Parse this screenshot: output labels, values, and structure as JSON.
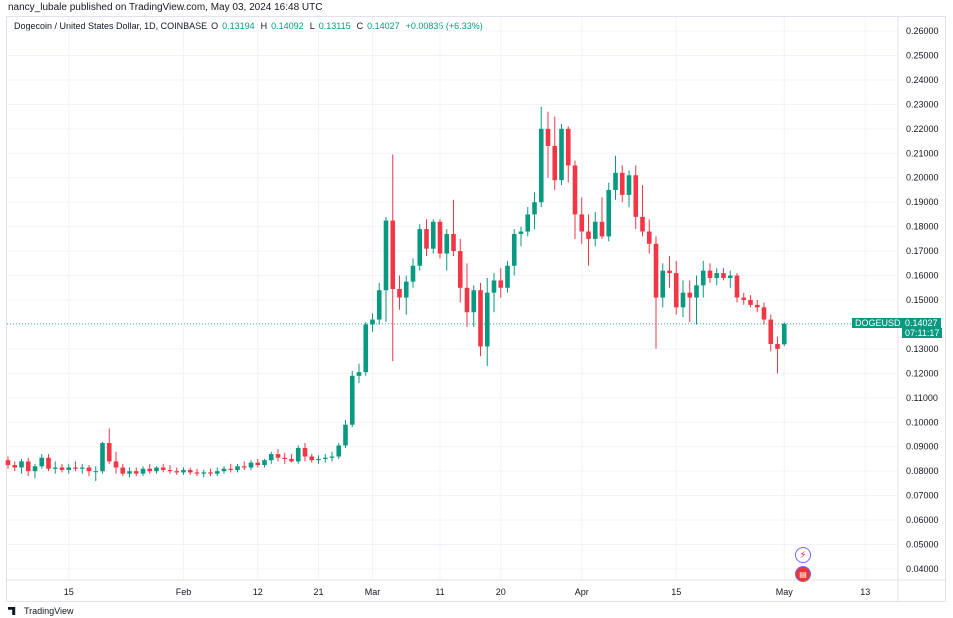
{
  "header": {
    "publisher": "nancy_lubale published on TradingView.com, May 03, 2024 16:48 UTC"
  },
  "legend": {
    "symbol": "Dogecoin / United States Dollar, 1D, COINBASE",
    "o_label": "O",
    "o_value": "0.13194",
    "h_label": "H",
    "h_value": "0.14092",
    "l_label": "L",
    "l_value": "0.13115",
    "c_label": "C",
    "c_value": "0.14027",
    "change": "+0.00835 (+6.33%)"
  },
  "price_label": {
    "symbol": "DOGEUSD",
    "value": "0.14027",
    "countdown": "07:11:17"
  },
  "footer": {
    "brand": "TradingView"
  },
  "icons": {
    "flash": "lightning-icon",
    "flag": "us-flag-icon"
  },
  "colors": {
    "up": "#089981",
    "down": "#f23645",
    "grid": "#f0f3fa",
    "axis_text": "#131722"
  },
  "chart_data": {
    "type": "candlestick",
    "title": "Dogecoin / United States Dollar, 1D, COINBASE",
    "xlabel": "",
    "ylabel": "",
    "ylim": [
      0.035,
      0.265
    ],
    "y_ticks": [
      "0.26000",
      "0.25000",
      "0.24000",
      "0.23000",
      "0.22000",
      "0.21000",
      "0.20000",
      "0.19000",
      "0.18000",
      "0.17000",
      "0.16000",
      "0.15000",
      "0.14000",
      "0.13000",
      "0.12000",
      "0.11000",
      "0.10000",
      "0.09000",
      "0.08000",
      "0.07000",
      "0.06000",
      "0.05000",
      "0.04000"
    ],
    "x_ticks": [
      {
        "label": "15",
        "index": 9
      },
      {
        "label": "Feb",
        "index": 26
      },
      {
        "label": "12",
        "index": 37
      },
      {
        "label": "21",
        "index": 46
      },
      {
        "label": "Mar",
        "index": 54
      },
      {
        "label": "11",
        "index": 64
      },
      {
        "label": "20",
        "index": 73
      },
      {
        "label": "Apr",
        "index": 85
      },
      {
        "label": "15",
        "index": 99
      },
      {
        "label": "May",
        "index": 115
      },
      {
        "label": "13",
        "index": 127
      }
    ],
    "candles": [
      [
        0.0845,
        0.086,
        0.081,
        0.0825
      ],
      [
        0.0825,
        0.084,
        0.08,
        0.0815
      ],
      [
        0.0815,
        0.085,
        0.079,
        0.084
      ],
      [
        0.084,
        0.0855,
        0.078,
        0.08
      ],
      [
        0.08,
        0.083,
        0.077,
        0.082
      ],
      [
        0.082,
        0.087,
        0.081,
        0.0855
      ],
      [
        0.0855,
        0.087,
        0.08,
        0.081
      ],
      [
        0.081,
        0.084,
        0.079,
        0.0815
      ],
      [
        0.0815,
        0.083,
        0.0795,
        0.0805
      ],
      [
        0.0805,
        0.083,
        0.079,
        0.0815
      ],
      [
        0.0815,
        0.084,
        0.08,
        0.081
      ],
      [
        0.081,
        0.083,
        0.079,
        0.0815
      ],
      [
        0.0815,
        0.0825,
        0.078,
        0.08
      ],
      [
        0.08,
        0.082,
        0.076,
        0.08
      ],
      [
        0.08,
        0.092,
        0.079,
        0.0915
      ],
      [
        0.0915,
        0.0975,
        0.083,
        0.084
      ],
      [
        0.084,
        0.088,
        0.079,
        0.0815
      ],
      [
        0.0815,
        0.083,
        0.078,
        0.079
      ],
      [
        0.079,
        0.0815,
        0.0775,
        0.08
      ],
      [
        0.08,
        0.0815,
        0.078,
        0.079
      ],
      [
        0.079,
        0.082,
        0.078,
        0.081
      ],
      [
        0.081,
        0.083,
        0.079,
        0.08
      ],
      [
        0.08,
        0.082,
        0.079,
        0.0815
      ],
      [
        0.0815,
        0.083,
        0.0795,
        0.0805
      ],
      [
        0.0805,
        0.0825,
        0.079,
        0.08
      ],
      [
        0.08,
        0.0815,
        0.0785,
        0.0795
      ],
      [
        0.0795,
        0.0815,
        0.0785,
        0.0805
      ],
      [
        0.0805,
        0.0815,
        0.0785,
        0.0795
      ],
      [
        0.0795,
        0.081,
        0.078,
        0.079
      ],
      [
        0.079,
        0.0805,
        0.0775,
        0.0795
      ],
      [
        0.0795,
        0.081,
        0.078,
        0.079
      ],
      [
        0.079,
        0.0815,
        0.078,
        0.08
      ],
      [
        0.08,
        0.082,
        0.079,
        0.081
      ],
      [
        0.081,
        0.083,
        0.0795,
        0.0805
      ],
      [
        0.0805,
        0.083,
        0.0795,
        0.082
      ],
      [
        0.082,
        0.084,
        0.0805,
        0.0815
      ],
      [
        0.0815,
        0.0845,
        0.0805,
        0.0835
      ],
      [
        0.0835,
        0.085,
        0.0815,
        0.0825
      ],
      [
        0.0825,
        0.085,
        0.0815,
        0.0845
      ],
      [
        0.0845,
        0.088,
        0.083,
        0.087
      ],
      [
        0.087,
        0.089,
        0.084,
        0.0855
      ],
      [
        0.0855,
        0.0875,
        0.083,
        0.085
      ],
      [
        0.085,
        0.087,
        0.0835,
        0.084
      ],
      [
        0.084,
        0.0905,
        0.083,
        0.0895
      ],
      [
        0.0895,
        0.0915,
        0.084,
        0.086
      ],
      [
        0.086,
        0.087,
        0.0835,
        0.0845
      ],
      [
        0.0845,
        0.0865,
        0.083,
        0.085
      ],
      [
        0.085,
        0.087,
        0.0835,
        0.0855
      ],
      [
        0.0855,
        0.088,
        0.084,
        0.086
      ],
      [
        0.086,
        0.0915,
        0.085,
        0.0905
      ],
      [
        0.0905,
        0.101,
        0.0895,
        0.099
      ],
      [
        0.099,
        0.121,
        0.098,
        0.119
      ],
      [
        0.119,
        0.124,
        0.116,
        0.1205
      ],
      [
        0.1205,
        0.141,
        0.119,
        0.14
      ],
      [
        0.14,
        0.1445,
        0.137,
        0.142
      ],
      [
        0.142,
        0.157,
        0.14,
        0.154
      ],
      [
        0.154,
        0.184,
        0.141,
        0.1825
      ],
      [
        0.1825,
        0.2095,
        0.125,
        0.1545
      ],
      [
        0.1545,
        0.16,
        0.146,
        0.151
      ],
      [
        0.151,
        0.16,
        0.144,
        0.1575
      ],
      [
        0.1575,
        0.167,
        0.155,
        0.164
      ],
      [
        0.164,
        0.181,
        0.162,
        0.179
      ],
      [
        0.179,
        0.183,
        0.168,
        0.171
      ],
      [
        0.171,
        0.183,
        0.169,
        0.182
      ],
      [
        0.182,
        0.183,
        0.167,
        0.169
      ],
      [
        0.169,
        0.179,
        0.162,
        0.177
      ],
      [
        0.177,
        0.191,
        0.168,
        0.17
      ],
      [
        0.17,
        0.175,
        0.149,
        0.155
      ],
      [
        0.155,
        0.165,
        0.139,
        0.145
      ],
      [
        0.145,
        0.156,
        0.139,
        0.154
      ],
      [
        0.154,
        0.157,
        0.127,
        0.131
      ],
      [
        0.131,
        0.159,
        0.123,
        0.153
      ],
      [
        0.153,
        0.161,
        0.145,
        0.158
      ],
      [
        0.158,
        0.163,
        0.151,
        0.155
      ],
      [
        0.155,
        0.166,
        0.153,
        0.164
      ],
      [
        0.164,
        0.179,
        0.16,
        0.177
      ],
      [
        0.177,
        0.18,
        0.172,
        0.178
      ],
      [
        0.178,
        0.188,
        0.176,
        0.185
      ],
      [
        0.185,
        0.194,
        0.179,
        0.19
      ],
      [
        0.19,
        0.229,
        0.188,
        0.22
      ],
      [
        0.22,
        0.227,
        0.2,
        0.213
      ],
      [
        0.213,
        0.225,
        0.195,
        0.199
      ],
      [
        0.199,
        0.222,
        0.197,
        0.22
      ],
      [
        0.22,
        0.221,
        0.198,
        0.205
      ],
      [
        0.205,
        0.207,
        0.175,
        0.185
      ],
      [
        0.185,
        0.192,
        0.173,
        0.178
      ],
      [
        0.178,
        0.185,
        0.164,
        0.175
      ],
      [
        0.175,
        0.186,
        0.172,
        0.182
      ],
      [
        0.182,
        0.192,
        0.175,
        0.176
      ],
      [
        0.176,
        0.198,
        0.174,
        0.195
      ],
      [
        0.195,
        0.209,
        0.191,
        0.202
      ],
      [
        0.202,
        0.205,
        0.19,
        0.193
      ],
      [
        0.193,
        0.203,
        0.188,
        0.201
      ],
      [
        0.201,
        0.205,
        0.179,
        0.184
      ],
      [
        0.184,
        0.197,
        0.176,
        0.178
      ],
      [
        0.178,
        0.183,
        0.169,
        0.173
      ],
      [
        0.173,
        0.176,
        0.13,
        0.151
      ],
      [
        0.151,
        0.165,
        0.147,
        0.162
      ],
      [
        0.162,
        0.168,
        0.155,
        0.161
      ],
      [
        0.161,
        0.166,
        0.144,
        0.147
      ],
      [
        0.147,
        0.158,
        0.143,
        0.153
      ],
      [
        0.153,
        0.158,
        0.141,
        0.151
      ],
      [
        0.151,
        0.16,
        0.14,
        0.156
      ],
      [
        0.156,
        0.166,
        0.151,
        0.162
      ],
      [
        0.162,
        0.165,
        0.157,
        0.159
      ],
      [
        0.159,
        0.163,
        0.156,
        0.161
      ],
      [
        0.161,
        0.163,
        0.158,
        0.159
      ],
      [
        0.159,
        0.162,
        0.155,
        0.16
      ],
      [
        0.16,
        0.161,
        0.149,
        0.151
      ],
      [
        0.151,
        0.153,
        0.148,
        0.15
      ],
      [
        0.15,
        0.152,
        0.147,
        0.148
      ],
      [
        0.148,
        0.15,
        0.145,
        0.147
      ],
      [
        0.147,
        0.149,
        0.14,
        0.142
      ],
      [
        0.142,
        0.144,
        0.129,
        0.132
      ],
      [
        0.132,
        0.135,
        0.12,
        0.13
      ],
      [
        0.1319,
        0.1409,
        0.1312,
        0.1403
      ]
    ]
  }
}
